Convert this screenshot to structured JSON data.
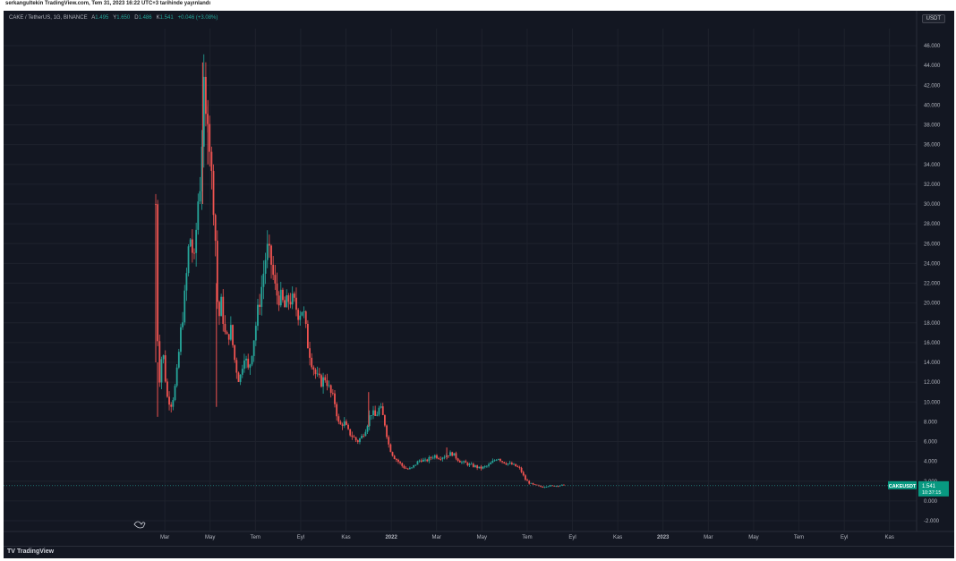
{
  "header": {
    "published": "serkangultekin TradingView.com, Tem 31, 2023 16:22 UTC+3 tarihinde yayınlandı"
  },
  "legend": {
    "symbol": "CAKE / TetherUS, 1G, BINANCE",
    "open_label": "A",
    "open": "1.495",
    "high_label": "Y",
    "high": "1.650",
    "low_label": "D",
    "low": "1.486",
    "close_label": "K",
    "close": "1.541",
    "change": "+0.046 (+3.08%)"
  },
  "currency_button": "USDT",
  "price_tag": {
    "symbol": "CAKEUSDT",
    "price": "1.541",
    "countdown": "10:37:15"
  },
  "footer": {
    "logo_mark": "TV",
    "brand": "TradingView"
  },
  "colors": {
    "background": "#131722",
    "grid": "#1e222d",
    "up": "#26a69a",
    "down": "#ef5350",
    "axis_text": "#b2b5be",
    "price_tag": "#089981"
  },
  "chart_data": {
    "type": "candlestick",
    "x_axis_labels": [
      "Mar",
      "May",
      "Tem",
      "Eyl",
      "Kas",
      "2022",
      "Mar",
      "May",
      "Tem",
      "Eyl",
      "Kas",
      "2023",
      "Mar",
      "May",
      "Tem",
      "Eyl",
      "Kas"
    ],
    "y_axis_labels": [
      "46.000",
      "44.000",
      "42.000",
      "40.000",
      "38.000",
      "36.000",
      "34.000",
      "32.000",
      "30.000",
      "28.000",
      "26.000",
      "24.000",
      "22.000",
      "20.000",
      "18.000",
      "16.000",
      "14.000",
      "12.000",
      "10.000",
      "8.000",
      "6.000",
      "4.000",
      "2.000",
      "0.000",
      "-2.000"
    ],
    "y_ticks": [
      46,
      44,
      42,
      40,
      38,
      36,
      34,
      32,
      30,
      28,
      26,
      24,
      22,
      20,
      18,
      16,
      14,
      12,
      10,
      8,
      6,
      4,
      2,
      0,
      -2
    ],
    "ylim": [
      -3,
      48
    ],
    "x_range_months": [
      0,
      21.4
    ],
    "current_price": 1.541,
    "price_path": [
      [
        0.0,
        30.0
      ],
      [
        0.05,
        19.0
      ],
      [
        0.15,
        12.0
      ],
      [
        0.3,
        15.5
      ],
      [
        0.5,
        10.5
      ],
      [
        0.7,
        9.8
      ],
      [
        0.9,
        12.0
      ],
      [
        1.1,
        17.0
      ],
      [
        1.3,
        21.0
      ],
      [
        1.5,
        27.0
      ],
      [
        1.7,
        24.0
      ],
      [
        1.85,
        30.0
      ],
      [
        2.0,
        33.0
      ],
      [
        2.1,
        42.0
      ],
      [
        2.2,
        38.0
      ],
      [
        2.3,
        40.0
      ],
      [
        2.45,
        33.0
      ],
      [
        2.6,
        29.0
      ],
      [
        2.75,
        18.0
      ],
      [
        2.9,
        20.0
      ],
      [
        3.1,
        16.0
      ],
      [
        3.3,
        17.5
      ],
      [
        3.5,
        14.0
      ],
      [
        3.7,
        12.0
      ],
      [
        3.9,
        15.0
      ],
      [
        4.1,
        13.0
      ],
      [
        4.3,
        16.0
      ],
      [
        4.5,
        19.0
      ],
      [
        4.7,
        22.0
      ],
      [
        4.9,
        25.5
      ],
      [
        5.1,
        24.0
      ],
      [
        5.3,
        21.0
      ],
      [
        5.5,
        20.5
      ],
      [
        5.7,
        19.5
      ],
      [
        5.9,
        20.5
      ],
      [
        6.1,
        20.0
      ],
      [
        6.3,
        19.0
      ],
      [
        6.5,
        19.5
      ],
      [
        6.7,
        16.0
      ],
      [
        6.9,
        14.0
      ],
      [
        7.1,
        12.5
      ],
      [
        7.3,
        12.0
      ],
      [
        7.5,
        12.5
      ],
      [
        7.7,
        11.0
      ],
      [
        7.9,
        10.0
      ],
      [
        8.1,
        7.5
      ],
      [
        8.3,
        8.0
      ],
      [
        8.5,
        7.0
      ],
      [
        8.7,
        6.5
      ],
      [
        8.9,
        6.0
      ],
      [
        9.1,
        6.5
      ],
      [
        9.3,
        7.5
      ],
      [
        9.5,
        9.0
      ],
      [
        9.7,
        8.5
      ],
      [
        9.9,
        9.5
      ],
      [
        10.1,
        8.0
      ],
      [
        10.3,
        5.5
      ],
      [
        10.5,
        4.5
      ],
      [
        10.7,
        4.0
      ],
      [
        10.9,
        3.5
      ],
      [
        11.1,
        3.2
      ],
      [
        11.3,
        3.3
      ],
      [
        11.5,
        3.8
      ],
      [
        11.7,
        4.2
      ],
      [
        11.9,
        4.0
      ],
      [
        12.1,
        4.3
      ],
      [
        12.3,
        4.6
      ],
      [
        12.5,
        4.4
      ],
      [
        12.7,
        4.5
      ],
      [
        12.9,
        4.7
      ],
      [
        13.1,
        4.8
      ],
      [
        13.3,
        4.3
      ],
      [
        13.5,
        3.9
      ],
      [
        13.7,
        3.8
      ],
      [
        13.9,
        3.6
      ],
      [
        14.1,
        3.5
      ],
      [
        14.3,
        3.3
      ],
      [
        14.5,
        3.4
      ],
      [
        14.7,
        3.6
      ],
      [
        14.9,
        4.0
      ],
      [
        15.1,
        4.4
      ],
      [
        15.3,
        4.0
      ],
      [
        15.5,
        3.8
      ],
      [
        15.7,
        3.7
      ],
      [
        15.9,
        3.5
      ],
      [
        16.1,
        3.2
      ],
      [
        16.3,
        2.2
      ],
      [
        16.5,
        1.8
      ],
      [
        16.7,
        1.6
      ],
      [
        16.9,
        1.5
      ],
      [
        17.1,
        1.4
      ],
      [
        17.3,
        1.55
      ],
      [
        17.5,
        1.5
      ],
      [
        17.7,
        1.55
      ],
      [
        17.9,
        1.6
      ],
      [
        18.1,
        1.541
      ]
    ],
    "spikes": [
      {
        "x": 2.07,
        "high": 44.3,
        "low": 30.0
      },
      {
        "x": 2.3,
        "high": 40.5,
        "low": 34.0
      },
      {
        "x": 0.0,
        "high": 30.0,
        "low": 14.0
      },
      {
        "x": 2.68,
        "high": 22.0,
        "low": 9.5
      },
      {
        "x": 0.08,
        "high": 14.0,
        "low": 8.5
      },
      {
        "x": 9.4,
        "high": 11.0,
        "low": 7.5
      },
      {
        "x": 12.85,
        "high": 5.4,
        "low": 4.2
      }
    ]
  }
}
